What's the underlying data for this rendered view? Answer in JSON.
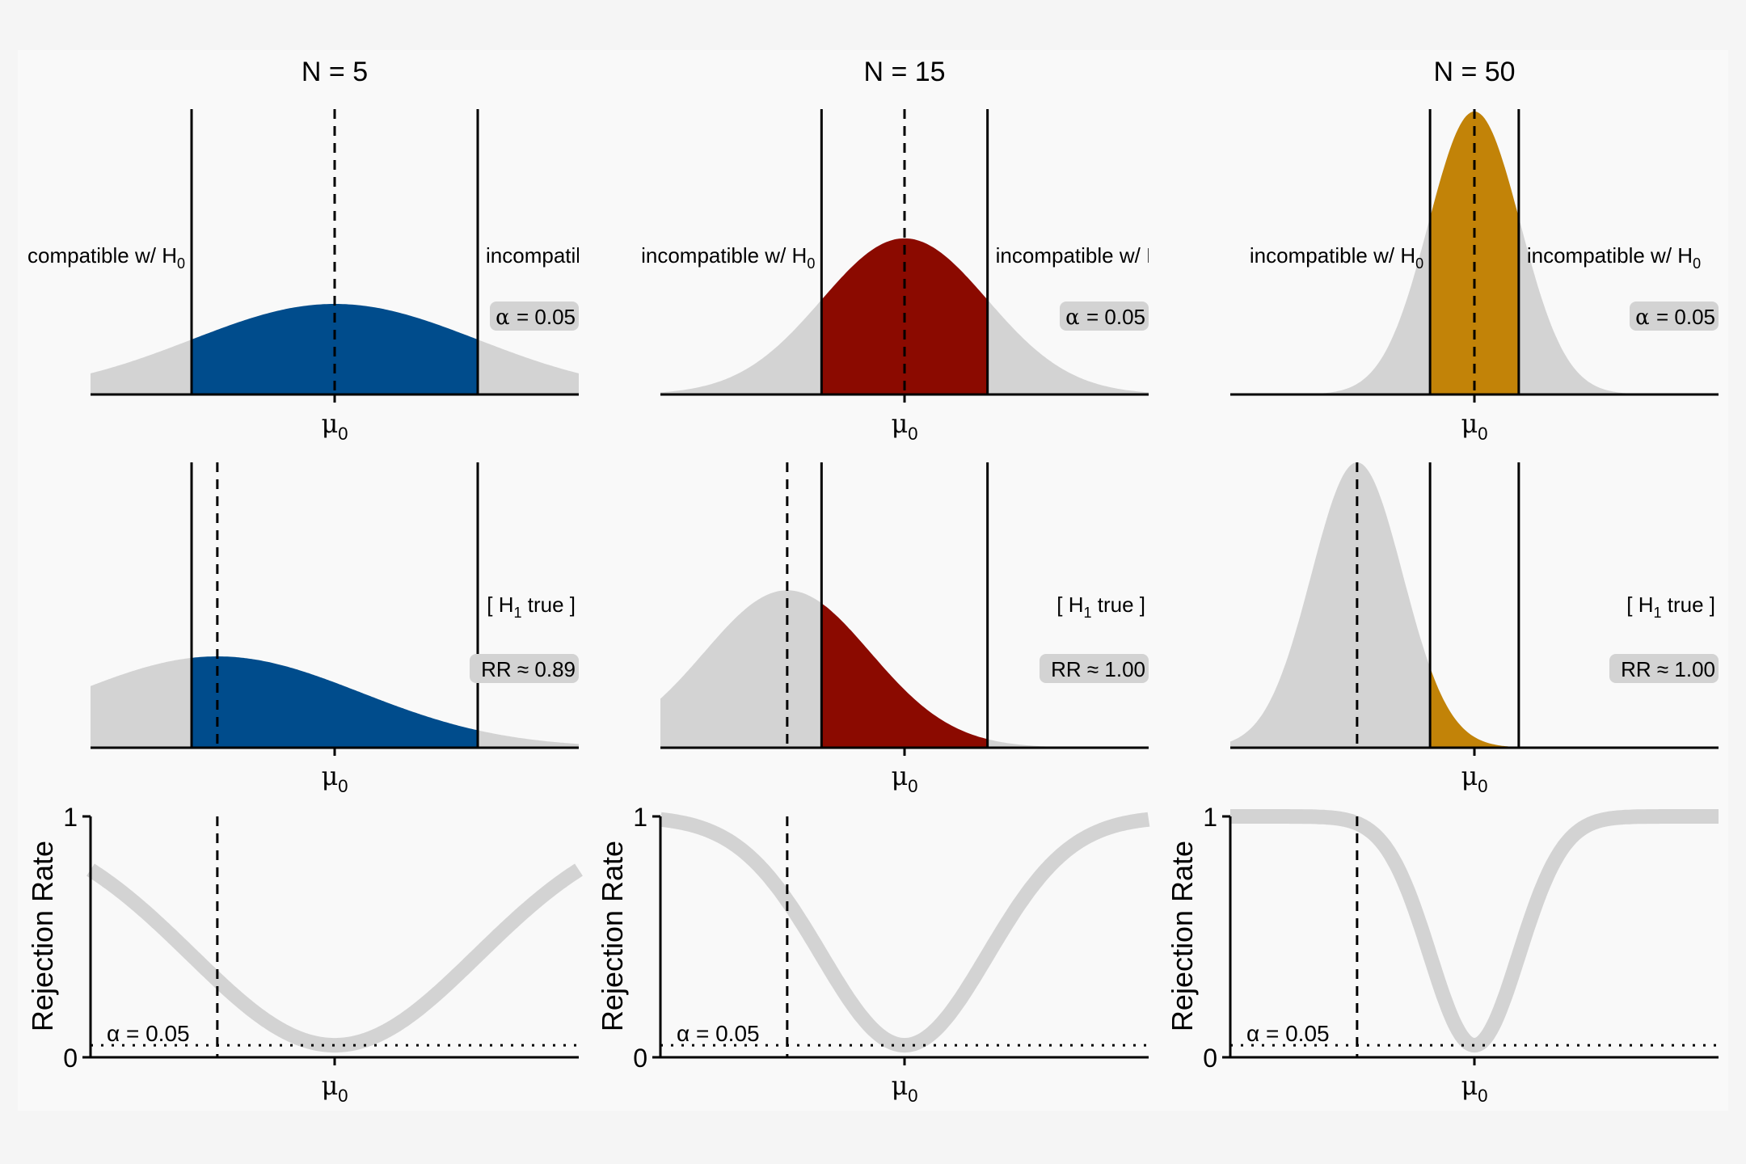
{
  "colors": {
    "page_background": "#f5f5f5",
    "panel_background": "#f9f9f9",
    "null_distribution_fill": "#d3d3d3",
    "rejection_rate_curve": "#d3d3d3",
    "axis": "#000000",
    "label_box": "#d3d3d3"
  },
  "labels": {
    "mu0": "μ",
    "mu0_sub": "0",
    "alpha_symbol": "α",
    "alpha_value": "= 0.05",
    "alpha_line_label": "α = 0.05",
    "h1_true": "[ H",
    "h1_true_sub": "1",
    "h1_true_tail": " true ]",
    "rr_prefix": "RR ≈ ",
    "rejection_rate_axis": "Rejection Rate",
    "y_tick_1": "1",
    "y_tick_0": "0",
    "h0_sub": "0"
  },
  "chart_data": [
    {
      "type": "area",
      "panel": "null-sampling-distribution",
      "title": "N = 5",
      "sample_size": 5,
      "color": "#004c8c",
      "left_region_label": "compatible w/ H",
      "right_region_label": "incompatible w/ H",
      "alpha": 0.05,
      "distribution_sd": 1.0,
      "critical_values": [
        -1.0,
        1.0
      ],
      "x_tick_labels": [
        "μ0"
      ]
    },
    {
      "type": "area",
      "panel": "null-sampling-distribution",
      "title": "N = 15",
      "sample_size": 15,
      "color": "#8b0a00",
      "left_region_label": "incompatible w/ H",
      "right_region_label": "incompatible w/ H",
      "alpha": 0.05,
      "distribution_sd": 0.58,
      "critical_values": [
        -0.58,
        0.58
      ],
      "x_tick_labels": [
        "μ0"
      ]
    },
    {
      "type": "area",
      "panel": "null-sampling-distribution",
      "title": "N = 50",
      "sample_size": 50,
      "color": "#c28308",
      "left_region_label": "incompatible w/ H",
      "right_region_label": "incompatible w/ H",
      "alpha": 0.05,
      "distribution_sd": 0.32,
      "critical_values": [
        -0.31,
        0.31
      ],
      "x_tick_labels": [
        "μ0"
      ]
    },
    {
      "type": "area",
      "panel": "alternative-sampling-distribution",
      "sample_size": 5,
      "annotation": "[ H1 true ]",
      "rejection_rate": 0.89,
      "rejection_rate_label": "0.89",
      "true_mean": -0.82,
      "distribution_sd": 1.0,
      "critical_values": [
        -1.0,
        1.0
      ]
    },
    {
      "type": "area",
      "panel": "alternative-sampling-distribution",
      "sample_size": 15,
      "annotation": "[ H1 true ]",
      "rejection_rate": 1.0,
      "rejection_rate_label": "1.00",
      "true_mean": -0.82,
      "distribution_sd": 0.58,
      "critical_values": [
        -0.58,
        0.58
      ]
    },
    {
      "type": "area",
      "panel": "alternative-sampling-distribution",
      "sample_size": 50,
      "annotation": "[ H1 true ]",
      "rejection_rate": 1.0,
      "rejection_rate_label": "1.00",
      "true_mean": -0.82,
      "distribution_sd": 0.32,
      "critical_values": [
        -0.31,
        0.31
      ]
    },
    {
      "type": "line",
      "panel": "rejection-rate-curve",
      "sample_size": 5,
      "ylabel": "Rejection Rate",
      "ylim": [
        0,
        1
      ],
      "y_ticks": [
        "0",
        "1"
      ],
      "alpha": 0.05,
      "alpha_label": "α = 0.05",
      "true_mean": -0.82,
      "curve_width": 1.0,
      "x_tick_labels": [
        "μ0"
      ]
    },
    {
      "type": "line",
      "panel": "rejection-rate-curve",
      "sample_size": 15,
      "ylabel": "Rejection Rate",
      "ylim": [
        0,
        1
      ],
      "y_ticks": [
        "0",
        "1"
      ],
      "alpha": 0.05,
      "alpha_label": "α = 0.05",
      "true_mean": -0.82,
      "curve_width": 0.58,
      "x_tick_labels": [
        "μ0"
      ]
    },
    {
      "type": "line",
      "panel": "rejection-rate-curve",
      "sample_size": 50,
      "ylabel": "Rejection Rate",
      "ylim": [
        0,
        1
      ],
      "y_ticks": [
        "0",
        "1"
      ],
      "alpha": 0.05,
      "alpha_label": "α = 0.05",
      "true_mean": -0.82,
      "curve_width": 0.31,
      "x_tick_labels": [
        "μ0"
      ]
    }
  ]
}
